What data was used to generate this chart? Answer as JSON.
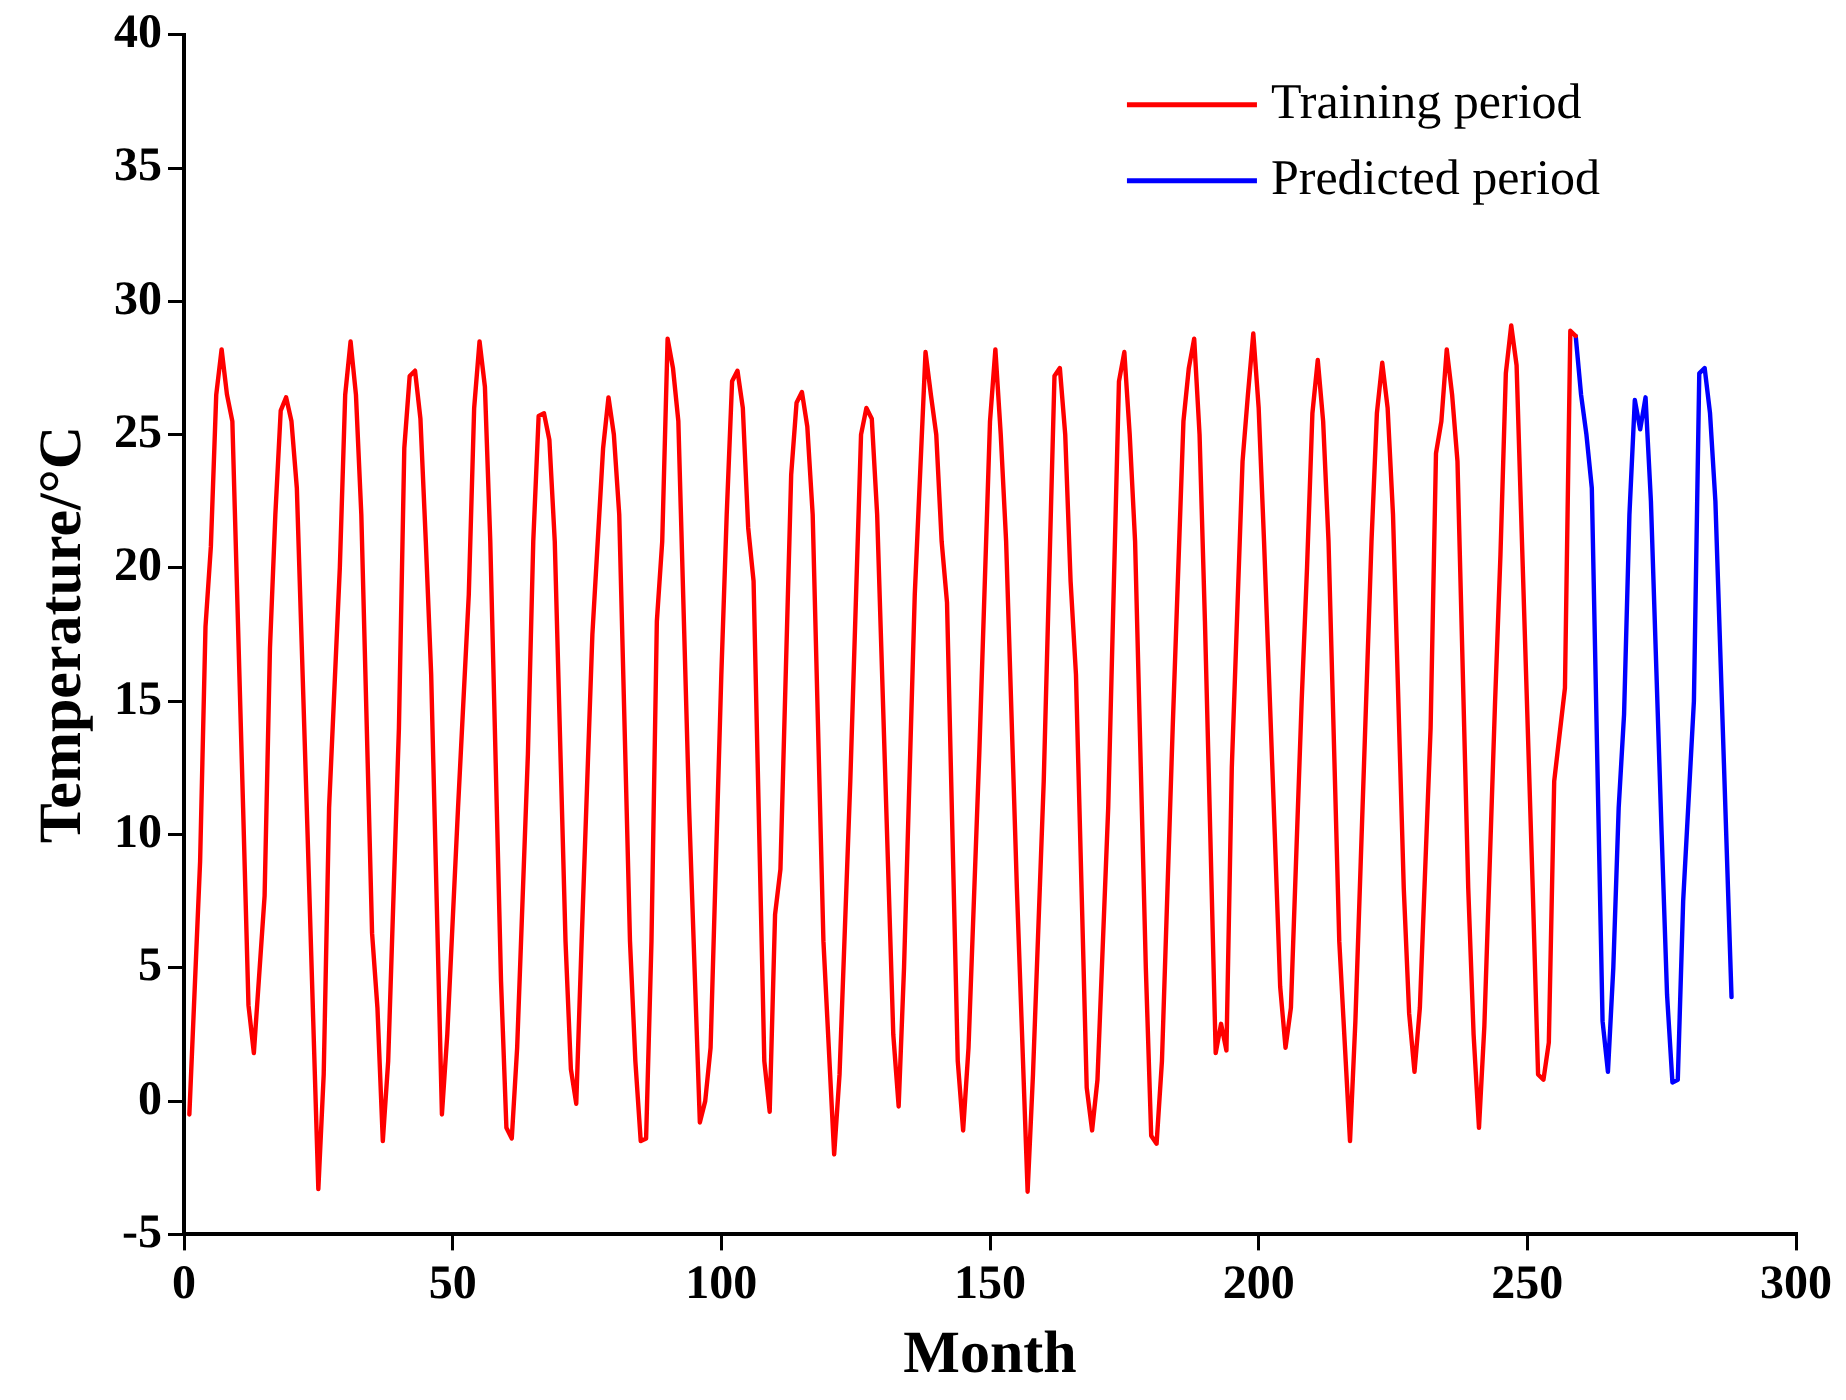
{
  "chart_data": {
    "type": "line",
    "xlabel": "Month",
    "ylabel": "Temperature/°C",
    "xlim": [
      0,
      300
    ],
    "xticks": [
      0,
      50,
      100,
      150,
      200,
      250,
      300
    ],
    "ylim": [
      -5,
      40
    ],
    "yticks": [
      -5,
      0,
      5,
      10,
      15,
      20,
      25,
      30,
      35,
      40
    ],
    "grid": false,
    "legend": "top right",
    "marker": "none",
    "line_style": "solid",
    "series": [
      {
        "name": "Training period",
        "color": "#ff0000",
        "x": [
          1,
          3,
          4,
          5,
          6,
          7,
          8,
          9,
          11,
          12,
          13,
          15,
          16,
          17,
          18,
          19,
          20,
          21,
          23,
          25,
          26,
          27,
          29,
          30,
          31,
          32,
          33,
          35,
          36,
          37,
          38,
          40,
          41,
          42,
          43,
          44,
          45,
          46,
          48,
          49,
          51,
          53,
          54,
          55,
          56,
          57,
          59,
          60,
          61,
          62,
          64,
          65,
          66,
          67,
          68,
          69,
          71,
          72,
          73,
          74,
          76,
          78,
          79,
          80,
          81,
          83,
          84,
          85,
          86,
          87,
          88,
          89,
          90,
          91,
          92,
          94,
          96,
          97,
          98,
          100,
          101,
          102,
          103,
          104,
          105,
          106,
          108,
          109,
          110,
          111,
          113,
          114,
          115,
          116,
          117,
          119,
          121,
          122,
          124,
          126,
          127,
          128,
          129,
          131,
          132,
          133,
          134,
          136,
          138,
          139,
          140,
          141,
          142,
          144,
          145,
          146,
          148,
          150,
          151,
          152,
          153,
          155,
          157,
          158,
          160,
          162,
          163,
          164,
          165,
          166,
          168,
          169,
          170,
          172,
          174,
          175,
          176,
          177,
          179,
          180,
          181,
          182,
          184,
          186,
          187,
          188,
          189,
          190,
          191,
          192,
          193,
          194,
          195,
          197,
          198,
          199,
          200,
          201,
          203,
          204,
          205,
          206,
          208,
          209,
          210,
          211,
          212,
          213,
          215,
          217,
          218,
          219,
          221,
          222,
          223,
          224,
          225,
          227,
          228,
          229,
          230,
          232,
          233,
          234,
          235,
          236,
          237,
          239,
          240,
          241,
          242,
          244,
          245,
          246,
          247,
          248,
          249,
          251,
          252,
          253,
          254,
          255,
          257,
          258,
          259
        ],
        "values": [
          -0.5,
          9,
          17.8,
          20.8,
          26.5,
          28.2,
          26.5,
          25.5,
          11,
          3.6,
          1.8,
          7.7,
          17,
          22,
          25.9,
          26.4,
          25.5,
          23,
          10,
          -3.3,
          1,
          11,
          20,
          26.5,
          28.5,
          26.5,
          22,
          6.3,
          3.5,
          -1.5,
          1.5,
          14,
          24.5,
          27.2,
          27.4,
          25.6,
          21,
          16,
          -0.5,
          2.5,
          11,
          19,
          26,
          28.5,
          26.8,
          21,
          4.5,
          -1,
          -1.4,
          2,
          13,
          21,
          25.7,
          25.8,
          24.8,
          21,
          6,
          1.2,
          -0.1,
          6,
          17.5,
          24.5,
          26.4,
          25,
          22,
          6,
          1.5,
          -1.5,
          -1.4,
          6,
          18,
          21,
          28.6,
          27.5,
          25.5,
          11,
          -0.8,
          0,
          2,
          16,
          22,
          27,
          27.4,
          26,
          21.5,
          19.5,
          1.5,
          -0.4,
          7,
          8.7,
          23.5,
          26.2,
          26.6,
          25.3,
          22,
          6,
          -2,
          1,
          12,
          25,
          26,
          25.6,
          22,
          9,
          2.5,
          -0.2,
          5,
          19,
          28.1,
          26.5,
          25,
          21,
          18.7,
          1.5,
          -1.1,
          2,
          13,
          25.5,
          28.2,
          25,
          21,
          8,
          -3.4,
          1,
          12,
          27.2,
          27.5,
          25,
          19.5,
          16,
          0.5,
          -1.1,
          0.8,
          11,
          27,
          28.1,
          25,
          21,
          5,
          -1.3,
          -1.6,
          1.5,
          14,
          25.5,
          27.5,
          28.6,
          25,
          18,
          10,
          1.8,
          2.9,
          1.9,
          12.5,
          24,
          26.5,
          28.8,
          26,
          21,
          10,
          4.3,
          2,
          3.5,
          15,
          20,
          25.8,
          27.8,
          25.5,
          21,
          6,
          -1.5,
          3,
          9,
          21,
          25.8,
          27.7,
          26,
          22,
          8,
          3.3,
          1.1,
          3.5,
          14,
          24.3,
          25.5,
          28.2,
          26.5,
          24,
          8,
          2.5,
          -1,
          2.8,
          15,
          20.5,
          27.3,
          29.1,
          27.6,
          21,
          8,
          1,
          0.8,
          2.2,
          12,
          15.5,
          28.9,
          28.7
        ]
      },
      {
        "name": "Predicted period",
        "color": "#0000ff",
        "x": [
          259,
          260,
          261,
          262,
          264,
          265,
          266,
          267,
          268,
          269,
          270,
          271,
          272,
          273,
          275,
          276,
          277,
          278,
          279,
          281,
          282,
          283,
          284,
          285,
          288
        ],
        "values": [
          28.7,
          26.5,
          25,
          23,
          3,
          1.1,
          5,
          11,
          14.5,
          22,
          26.3,
          25.2,
          26.4,
          22.5,
          10,
          4,
          0.7,
          0.8,
          7.5,
          15,
          27.3,
          27.5,
          25.8,
          22.5,
          3.9
        ]
      }
    ]
  }
}
